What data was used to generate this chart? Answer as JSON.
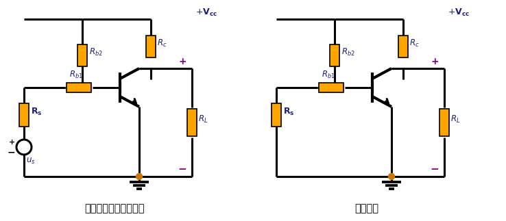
{
  "bg_color": "#ffffff",
  "line_color": "#000000",
  "resistor_color": "#FFA500",
  "dot_color": "#CC7700",
  "text_color": "#1a1a80",
  "plus_color": "#8B008B",
  "label1": "直接耦合共射放大电路",
  "label2": "直流通路",
  "figsize": [
    7.38,
    3.23
  ],
  "dpi": 100
}
